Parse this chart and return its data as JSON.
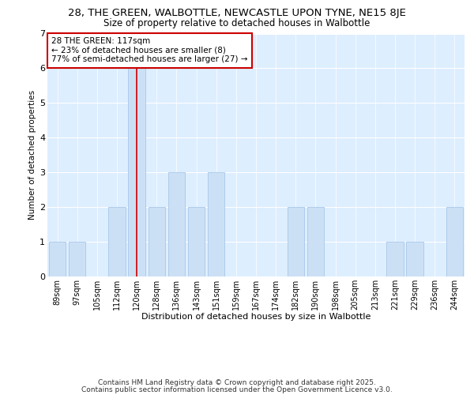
{
  "title_line1": "28, THE GREEN, WALBOTTLE, NEWCASTLE UPON TYNE, NE15 8JE",
  "title_line2": "Size of property relative to detached houses in Walbottle",
  "xlabel": "Distribution of detached houses by size in Walbottle",
  "ylabel": "Number of detached properties",
  "categories": [
    "89sqm",
    "97sqm",
    "105sqm",
    "112sqm",
    "120sqm",
    "128sqm",
    "136sqm",
    "143sqm",
    "151sqm",
    "159sqm",
    "167sqm",
    "174sqm",
    "182sqm",
    "190sqm",
    "198sqm",
    "205sqm",
    "213sqm",
    "221sqm",
    "229sqm",
    "236sqm",
    "244sqm"
  ],
  "values": [
    1,
    1,
    0,
    2,
    6,
    2,
    3,
    2,
    3,
    0,
    0,
    0,
    2,
    2,
    0,
    0,
    0,
    1,
    1,
    0,
    2
  ],
  "highlight_index": 4,
  "bar_color": "#cce0f5",
  "bar_edgecolor": "#a8c8e8",
  "highlight_line_color": "#cc0000",
  "ylim": [
    0,
    7
  ],
  "yticks": [
    0,
    1,
    2,
    3,
    4,
    5,
    6,
    7
  ],
  "annotation_text": "28 THE GREEN: 117sqm\n← 23% of detached houses are smaller (8)\n77% of semi-detached houses are larger (27) →",
  "annotation_box_facecolor": "#ffffff",
  "annotation_box_edgecolor": "#cc0000",
  "fig_background": "#ffffff",
  "plot_background": "#ddeeff",
  "footer_line1": "Contains HM Land Registry data © Crown copyright and database right 2025.",
  "footer_line2": "Contains public sector information licensed under the Open Government Licence v3.0.",
  "title_fontsize": 9.5,
  "subtitle_fontsize": 8.5,
  "axis_label_fontsize": 8,
  "tick_fontsize": 7,
  "annotation_fontsize": 7.5,
  "footer_fontsize": 6.5,
  "ylabel_fontsize": 7.5
}
